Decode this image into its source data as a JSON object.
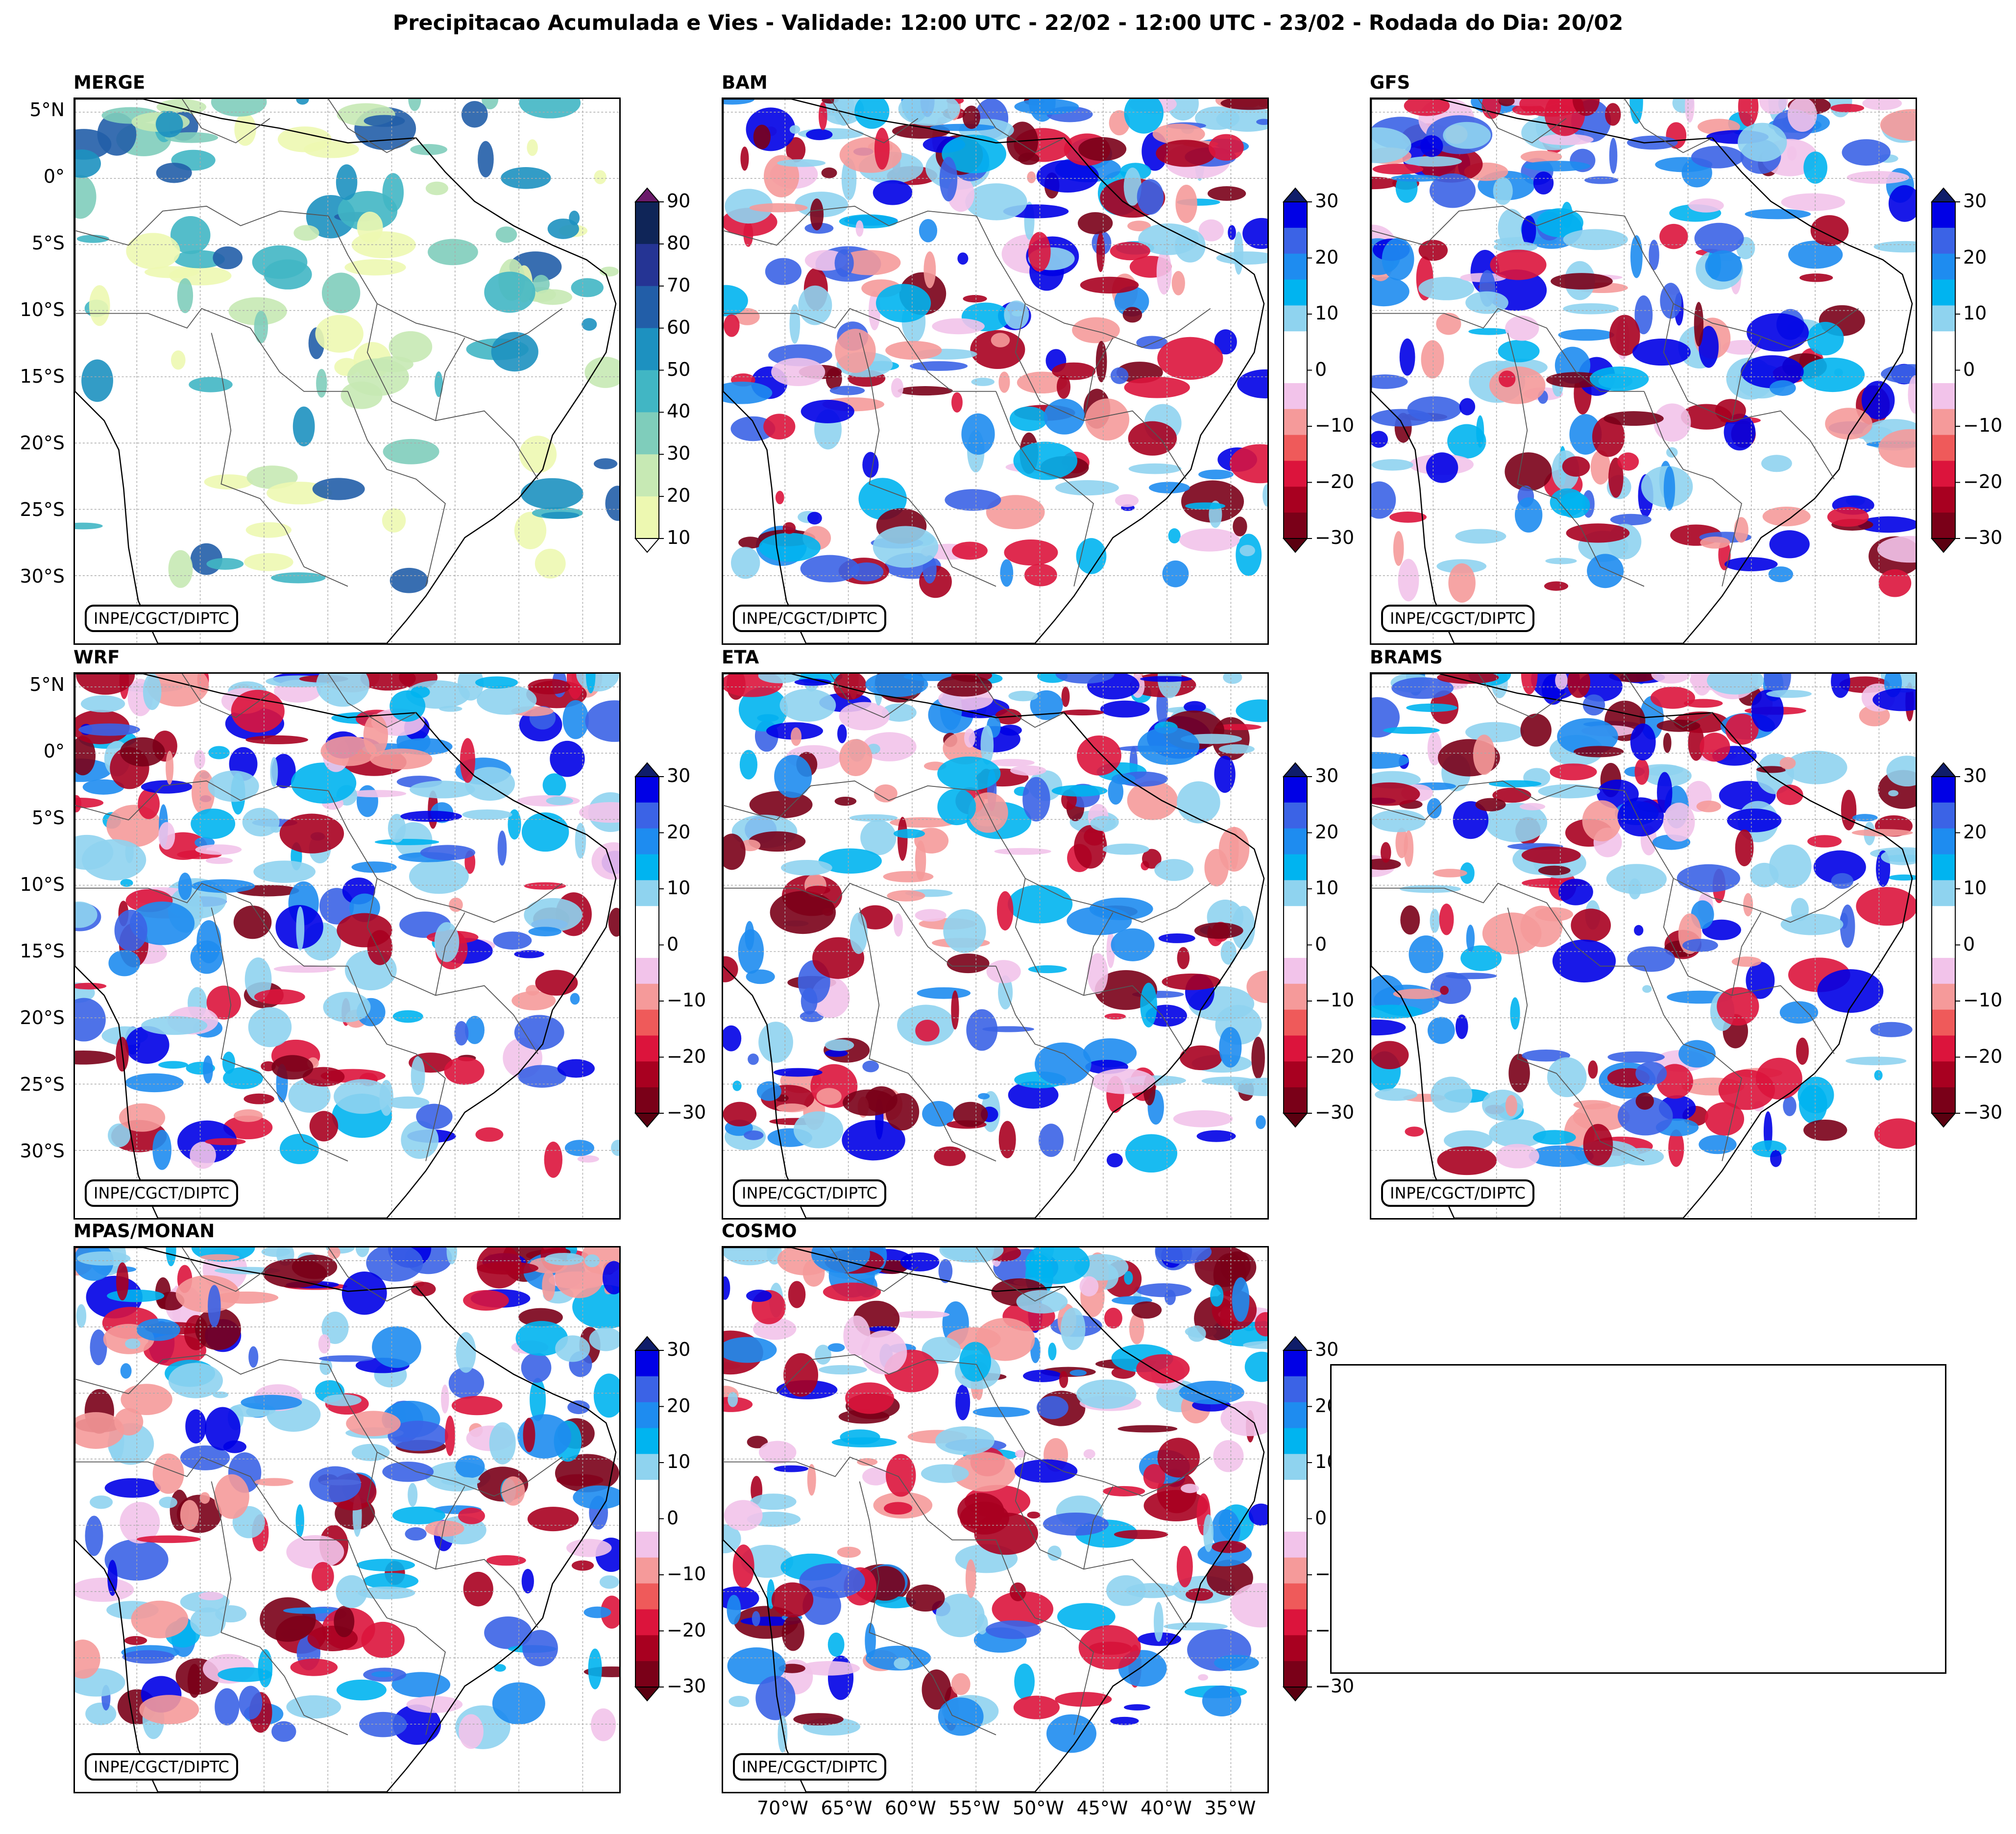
{
  "title": "Precipitacao Acumulada e Vies - Validade: 12:00 UTC - 22/02 - 12:00 UTC - 23/02 - Rodada do Dia: 20/02",
  "credit": "INPE/CGCT/DIPTC",
  "lat_labels": [
    "5°N",
    "0°",
    "5°S",
    "10°S",
    "15°S",
    "20°S",
    "25°S",
    "30°S"
  ],
  "lon_labels": [
    "70°W",
    "65°W",
    "60°W",
    "55°W",
    "50°W",
    "45°W",
    "40°W",
    "35°W"
  ],
  "panels": [
    {
      "name": "MERGE",
      "colorbar": "precip"
    },
    {
      "name": "BAM",
      "colorbar": "bias"
    },
    {
      "name": "GFS",
      "colorbar": "bias"
    },
    {
      "name": "WRF",
      "colorbar": "bias"
    },
    {
      "name": "ETA",
      "colorbar": "bias"
    },
    {
      "name": "BRAMS",
      "colorbar": "bias"
    },
    {
      "name": "MPAS/MONAN",
      "colorbar": "bias"
    },
    {
      "name": "COSMO",
      "colorbar": "bias"
    }
  ],
  "colorbars": {
    "precip": {
      "ticks": [
        "90",
        "80",
        "70",
        "60",
        "50",
        "40",
        "30",
        "20",
        "10"
      ],
      "colors": [
        "#0f2558",
        "#253494",
        "#225ea8",
        "#1d91c0",
        "#41b6c4",
        "#7fcdbb",
        "#c7e9b4",
        "#edf8b1"
      ],
      "extend_top": "#6a1a6a",
      "extend_bottom": "#ffffff"
    },
    "bias": {
      "ticks": [
        "30",
        "20",
        "10",
        "0",
        "−10",
        "−20",
        "−30"
      ],
      "colors": [
        "#0000e6",
        "#3b63e6",
        "#1e8cf0",
        "#00b4f0",
        "#8fd3ef",
        "#ffffff",
        "#ffffff",
        "#f2c3ea",
        "#f59a9a",
        "#ef5a5a",
        "#dc143c",
        "#a80020",
        "#7a0018"
      ],
      "extend_top": "#0f1d6a",
      "extend_bottom": "#5a0010"
    }
  }
}
